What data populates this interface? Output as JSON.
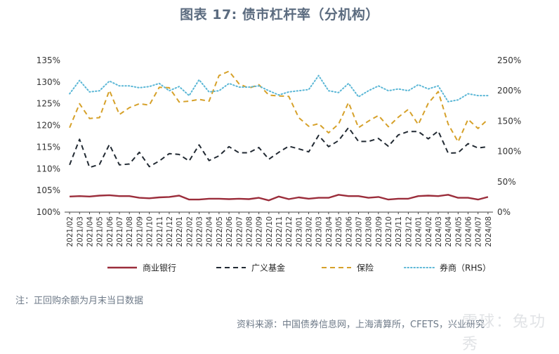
{
  "title": "图表 17: 债市杠杆率（分机构）",
  "note": "注：正回购余额为月末当日数据",
  "source": "资料来源：中国债券信息网，上海清算所，CFETS，兴业研究",
  "watermark": "雪球：兔功秀",
  "chart_data": {
    "type": "line",
    "categories": [
      "2021/02",
      "2021/03",
      "2021/04",
      "2021/05",
      "2021/06",
      "2021/07",
      "2021/08",
      "2021/09",
      "2021/10",
      "2021/11",
      "2021/12",
      "2022/01",
      "2022/02",
      "2022/03",
      "2022/04",
      "2022/05",
      "2022/06",
      "2022/07",
      "2022/08",
      "2022/09",
      "2022/10",
      "2022/11",
      "2022/12",
      "2023/01",
      "2023/02",
      "2023/03",
      "2023/04",
      "2023/05",
      "2023/06",
      "2023/07",
      "2023/08",
      "2023/09",
      "2023/10",
      "2023/11",
      "2023/12",
      "2024/01",
      "2024/02",
      "2024/03",
      "2024/04",
      "2024/05",
      "2024/06",
      "2024/07",
      "2024/08"
    ],
    "ylim": [
      100,
      135
    ],
    "yticks": [
      "100%",
      "105%",
      "110%",
      "115%",
      "120%",
      "125%",
      "130%",
      "135%"
    ],
    "y2lim": [
      0,
      250
    ],
    "y2ticks": [
      "0%",
      "50%",
      "100%",
      "150%",
      "200%",
      "250%"
    ],
    "series": [
      {
        "name": "商业银行",
        "axis": "left",
        "color": "#9b2d3b",
        "dash": "solid",
        "values": [
          103.6,
          103.7,
          103.6,
          103.8,
          103.9,
          103.7,
          103.7,
          103.3,
          103.2,
          103.4,
          103.5,
          103.8,
          102.9,
          102.9,
          103.1,
          103.1,
          103.0,
          103.1,
          103.0,
          103.3,
          102.7,
          103.6,
          103.0,
          103.4,
          103.1,
          103.3,
          103.3,
          104.0,
          103.7,
          103.7,
          103.3,
          103.5,
          102.9,
          103.1,
          103.1,
          103.7,
          103.8,
          103.7,
          104.0,
          103.3,
          103.3,
          102.9,
          103.5
        ]
      },
      {
        "name": "广义基金",
        "axis": "left",
        "color": "#222a33",
        "dash": "7,5",
        "values": [
          110.9,
          116.8,
          110.3,
          111.0,
          115.6,
          110.9,
          111.1,
          113.8,
          110.5,
          111.8,
          113.5,
          113.3,
          111.8,
          115.5,
          111.9,
          113.0,
          115.1,
          113.7,
          113.7,
          114.9,
          112.2,
          113.8,
          115.2,
          114.6,
          113.9,
          117.7,
          115.1,
          116.5,
          119.5,
          116.3,
          116.3,
          117.0,
          115.2,
          117.8,
          118.6,
          118.6,
          116.9,
          118.7,
          113.6,
          113.7,
          115.8,
          114.8,
          115.1
        ]
      },
      {
        "name": "保险",
        "axis": "left",
        "color": "#d6a12a",
        "dash": "7,5",
        "values": [
          119.5,
          125.0,
          121.6,
          121.8,
          128.1,
          122.5,
          124.1,
          125.0,
          124.7,
          128.8,
          128.7,
          125.4,
          125.6,
          126.0,
          125.6,
          131.5,
          132.5,
          129.6,
          128.6,
          129.4,
          127.0,
          126.8,
          126.7,
          121.8,
          119.8,
          120.4,
          118.3,
          120.3,
          125.3,
          119.5,
          121.0,
          122.3,
          119.7,
          121.9,
          123.7,
          120.2,
          125.1,
          127.8,
          120.3,
          116.2,
          121.4,
          119.3,
          121.4
        ]
      },
      {
        "name": "券商（RHS）",
        "axis": "right",
        "color": "#5bb7d6",
        "dash": "1.5,3",
        "values": [
          195,
          217,
          198,
          200,
          216,
          208,
          208,
          205,
          207,
          212,
          200,
          207,
          192,
          218,
          198,
          200,
          212,
          206,
          206,
          208,
          200,
          193,
          198,
          200,
          202,
          225,
          200,
          197,
          212,
          190,
          200,
          208,
          200,
          203,
          200,
          210,
          203,
          208,
          182,
          185,
          195,
          192,
          192
        ]
      }
    ]
  }
}
